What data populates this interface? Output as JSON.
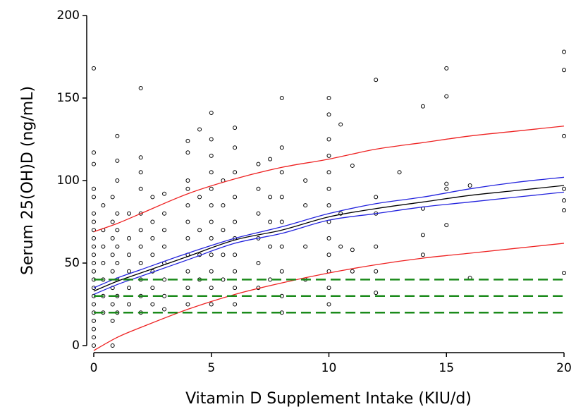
{
  "chart_data": {
    "type": "scatter",
    "xlabel": "Vitamin D Supplement Intake (KIU/d)",
    "ylabel": "Serum 25(OH)D (ng/mL)",
    "xlim": [
      0,
      20
    ],
    "ylim": [
      0,
      200
    ],
    "xticks": [
      0,
      5,
      10,
      15,
      20
    ],
    "yticks": [
      0,
      50,
      100,
      150,
      200
    ],
    "series": [
      {
        "style": "points",
        "color": "#000000",
        "x": [
          0,
          0,
          0,
          0,
          0,
          0,
          0,
          0,
          0,
          0,
          0,
          0,
          0,
          0,
          0,
          0,
          0,
          0,
          0,
          0,
          0,
          0,
          0.4,
          0.4,
          0.4,
          0.4,
          0.4,
          0.4,
          0.4,
          0.8,
          0.8,
          0.8,
          0.8,
          0.8,
          0.8,
          0.8,
          0.8,
          0.8,
          1,
          1,
          1,
          1,
          1,
          1,
          1,
          1,
          1,
          1,
          1.5,
          1.5,
          1.5,
          1.5,
          1.5,
          1.5,
          2,
          2,
          2,
          2,
          2,
          2,
          2,
          2,
          2,
          2,
          2,
          2.5,
          2.5,
          2.5,
          2.5,
          2.5,
          2.5,
          2.5,
          3,
          3,
          3,
          3,
          3,
          3,
          3,
          3,
          4,
          4,
          4,
          4,
          4,
          4,
          4,
          4,
          4,
          4,
          4,
          4.5,
          4.5,
          4.5,
          4.5,
          4.5,
          5,
          5,
          5,
          5,
          5,
          5,
          5,
          5,
          5,
          5,
          5,
          5,
          5.5,
          5.5,
          5.5,
          5.5,
          5.5,
          6,
          6,
          6,
          6,
          6,
          6,
          6,
          6,
          6,
          6,
          7,
          7,
          7,
          7,
          7,
          7,
          7.5,
          7.5,
          7.5,
          7.5,
          7.5,
          8,
          8,
          8,
          8,
          8,
          8,
          8,
          8,
          8,
          9,
          9,
          9,
          9,
          10,
          10,
          10,
          10,
          10,
          10,
          10,
          10,
          10,
          10,
          10,
          10,
          10,
          10.5,
          10.5,
          10.5,
          11,
          11,
          11,
          12,
          12,
          12,
          12,
          12,
          12,
          13,
          14,
          14,
          14,
          14,
          15,
          15,
          15,
          15,
          15,
          16,
          16,
          20,
          20,
          20,
          20,
          20,
          20,
          20
        ],
        "values": [
          5,
          10,
          15,
          20,
          25,
          30,
          35,
          40,
          45,
          50,
          55,
          60,
          65,
          70,
          75,
          80,
          90,
          95,
          110,
          117,
          168,
          0,
          20,
          30,
          40,
          50,
          60,
          70,
          85,
          15,
          25,
          35,
          45,
          55,
          65,
          75,
          90,
          0,
          20,
          30,
          40,
          50,
          60,
          70,
          80,
          100,
          112,
          127,
          25,
          35,
          45,
          55,
          65,
          80,
          20,
          30,
          40,
          50,
          60,
          70,
          80,
          95,
          105,
          114,
          156,
          25,
          35,
          45,
          55,
          65,
          75,
          90,
          22,
          30,
          40,
          50,
          60,
          70,
          80,
          92,
          25,
          35,
          45,
          55,
          65,
          75,
          85,
          95,
          100,
          117,
          124,
          40,
          55,
          70,
          90,
          131,
          25,
          35,
          45,
          55,
          65,
          75,
          85,
          95,
          105,
          115,
          125,
          141,
          40,
          55,
          70,
          85,
          100,
          25,
          35,
          45,
          55,
          65,
          75,
          90,
          105,
          120,
          132,
          35,
          50,
          65,
          80,
          95,
          110,
          40,
          60,
          75,
          90,
          113,
          20,
          30,
          45,
          60,
          75,
          90,
          105,
          120,
          150,
          40,
          60,
          85,
          100,
          25,
          35,
          45,
          55,
          65,
          75,
          85,
          95,
          105,
          115,
          125,
          140,
          150,
          60,
          80,
          134,
          45,
          58,
          109,
          32,
          45,
          60,
          80,
          90,
          161,
          105,
          55,
          67,
          83,
          145,
          73,
          95,
          98,
          151,
          168,
          41,
          97,
          44,
          82,
          88,
          95,
          127,
          167,
          178
        ]
      },
      {
        "style": "line",
        "color": "#000000",
        "x": [
          0,
          1,
          2,
          4,
          6,
          8,
          10,
          12,
          14,
          16,
          18,
          20
        ],
        "values": [
          33,
          39,
          44,
          54,
          64,
          70,
          78,
          83,
          87,
          91,
          94,
          97
        ]
      },
      {
        "style": "line",
        "color": "#2222dd",
        "x": [
          0,
          1,
          2,
          4,
          6,
          8,
          10,
          12,
          14,
          16,
          18,
          20
        ],
        "values": [
          35,
          41,
          46,
          56,
          65,
          72,
          80,
          86,
          90,
          95,
          99,
          102
        ]
      },
      {
        "style": "line",
        "color": "#2222dd",
        "x": [
          0,
          1,
          2,
          4,
          6,
          8,
          10,
          12,
          14,
          16,
          18,
          20
        ],
        "values": [
          31,
          37,
          42,
          52,
          62,
          68,
          76,
          80,
          84,
          87,
          90,
          93
        ]
      },
      {
        "style": "line",
        "color": "#ee2222",
        "x": [
          0,
          1,
          2,
          4,
          6,
          8,
          10,
          12,
          14,
          16,
          18,
          20
        ],
        "values": [
          69,
          74,
          80,
          92,
          101,
          108,
          113,
          119,
          123,
          127,
          130,
          133
        ]
      },
      {
        "style": "line",
        "color": "#ee2222",
        "x": [
          0,
          1,
          2,
          4,
          6,
          8,
          10,
          12,
          14,
          16,
          18,
          20
        ],
        "values": [
          -3,
          5,
          11,
          22,
          31,
          38,
          44,
          49,
          53,
          56,
          59,
          62
        ]
      },
      {
        "style": "dashed",
        "color": "#1a8a1a",
        "x": [
          0,
          20
        ],
        "values": [
          40,
          40
        ]
      },
      {
        "style": "dashed",
        "color": "#1a8a1a",
        "x": [
          0,
          20
        ],
        "values": [
          30,
          30
        ]
      },
      {
        "style": "dashed",
        "color": "#1a8a1a",
        "x": [
          0,
          20
        ],
        "values": [
          20,
          20
        ]
      }
    ]
  }
}
